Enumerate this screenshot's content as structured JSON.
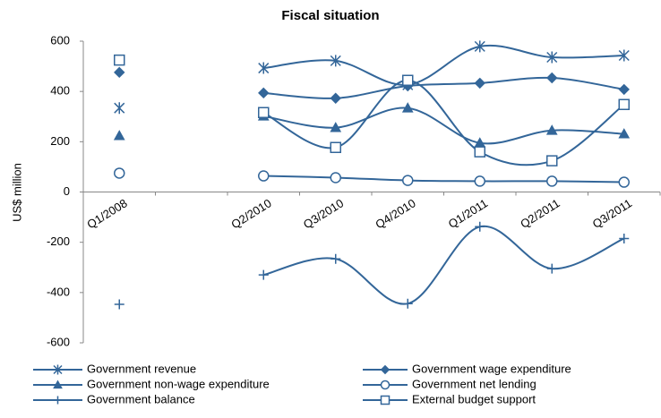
{
  "chart_data": {
    "type": "line",
    "title": "Fiscal situation",
    "y_label": "US$ million",
    "categories": [
      "Q1/2008",
      null,
      "Q2/2010",
      "Q3/2010",
      "Q4/2010",
      "Q1/2011",
      "Q2/2011",
      "Q3/2011"
    ],
    "series": [
      {
        "name": "Government revenue",
        "color": "#336699",
        "marker": "star",
        "values": [
          334,
          null,
          493,
          522,
          426,
          579,
          536,
          543
        ]
      },
      {
        "name": "Government wage expenditure",
        "color": "#336699",
        "marker": "diamond",
        "values": [
          476,
          null,
          394,
          373,
          422,
          433,
          454,
          408
        ]
      },
      {
        "name": "Government non-wage expenditure",
        "color": "#336699",
        "marker": "triangle",
        "values": [
          224,
          null,
          302,
          256,
          334,
          195,
          245,
          231
        ]
      },
      {
        "name": "Government net lending",
        "color": "#336699",
        "marker": "circle",
        "values": [
          75,
          null,
          64,
          57,
          46,
          43,
          43,
          39
        ]
      },
      {
        "name": "Government balance",
        "color": "#336699",
        "marker": "plus",
        "values": [
          -447,
          null,
          -330,
          -266,
          -444,
          -138,
          -305,
          -185
        ]
      },
      {
        "name": "External budget support",
        "color": "#336699",
        "marker": "square",
        "values": [
          525,
          null,
          316,
          177,
          444,
          160,
          124,
          348
        ]
      }
    ],
    "ylim": [
      -600,
      600
    ],
    "yticks": [
      -600,
      -400,
      -200,
      0,
      200,
      400,
      600
    ],
    "smooth": true,
    "grid": false
  }
}
